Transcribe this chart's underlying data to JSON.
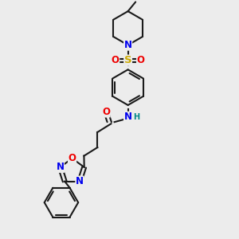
{
  "bg_color": "#ececec",
  "bond_color": "#1a1a1a",
  "bond_width": 1.5,
  "atom_colors": {
    "N": "#0000ee",
    "O": "#ee0000",
    "S": "#ccaa00",
    "H": "#008888",
    "C": "#1a1a1a"
  },
  "font_size": 8.5,
  "figsize": [
    3.0,
    3.0
  ],
  "dpi": 100,
  "xlim": [
    30,
    230
  ],
  "ylim": [
    10,
    290
  ]
}
